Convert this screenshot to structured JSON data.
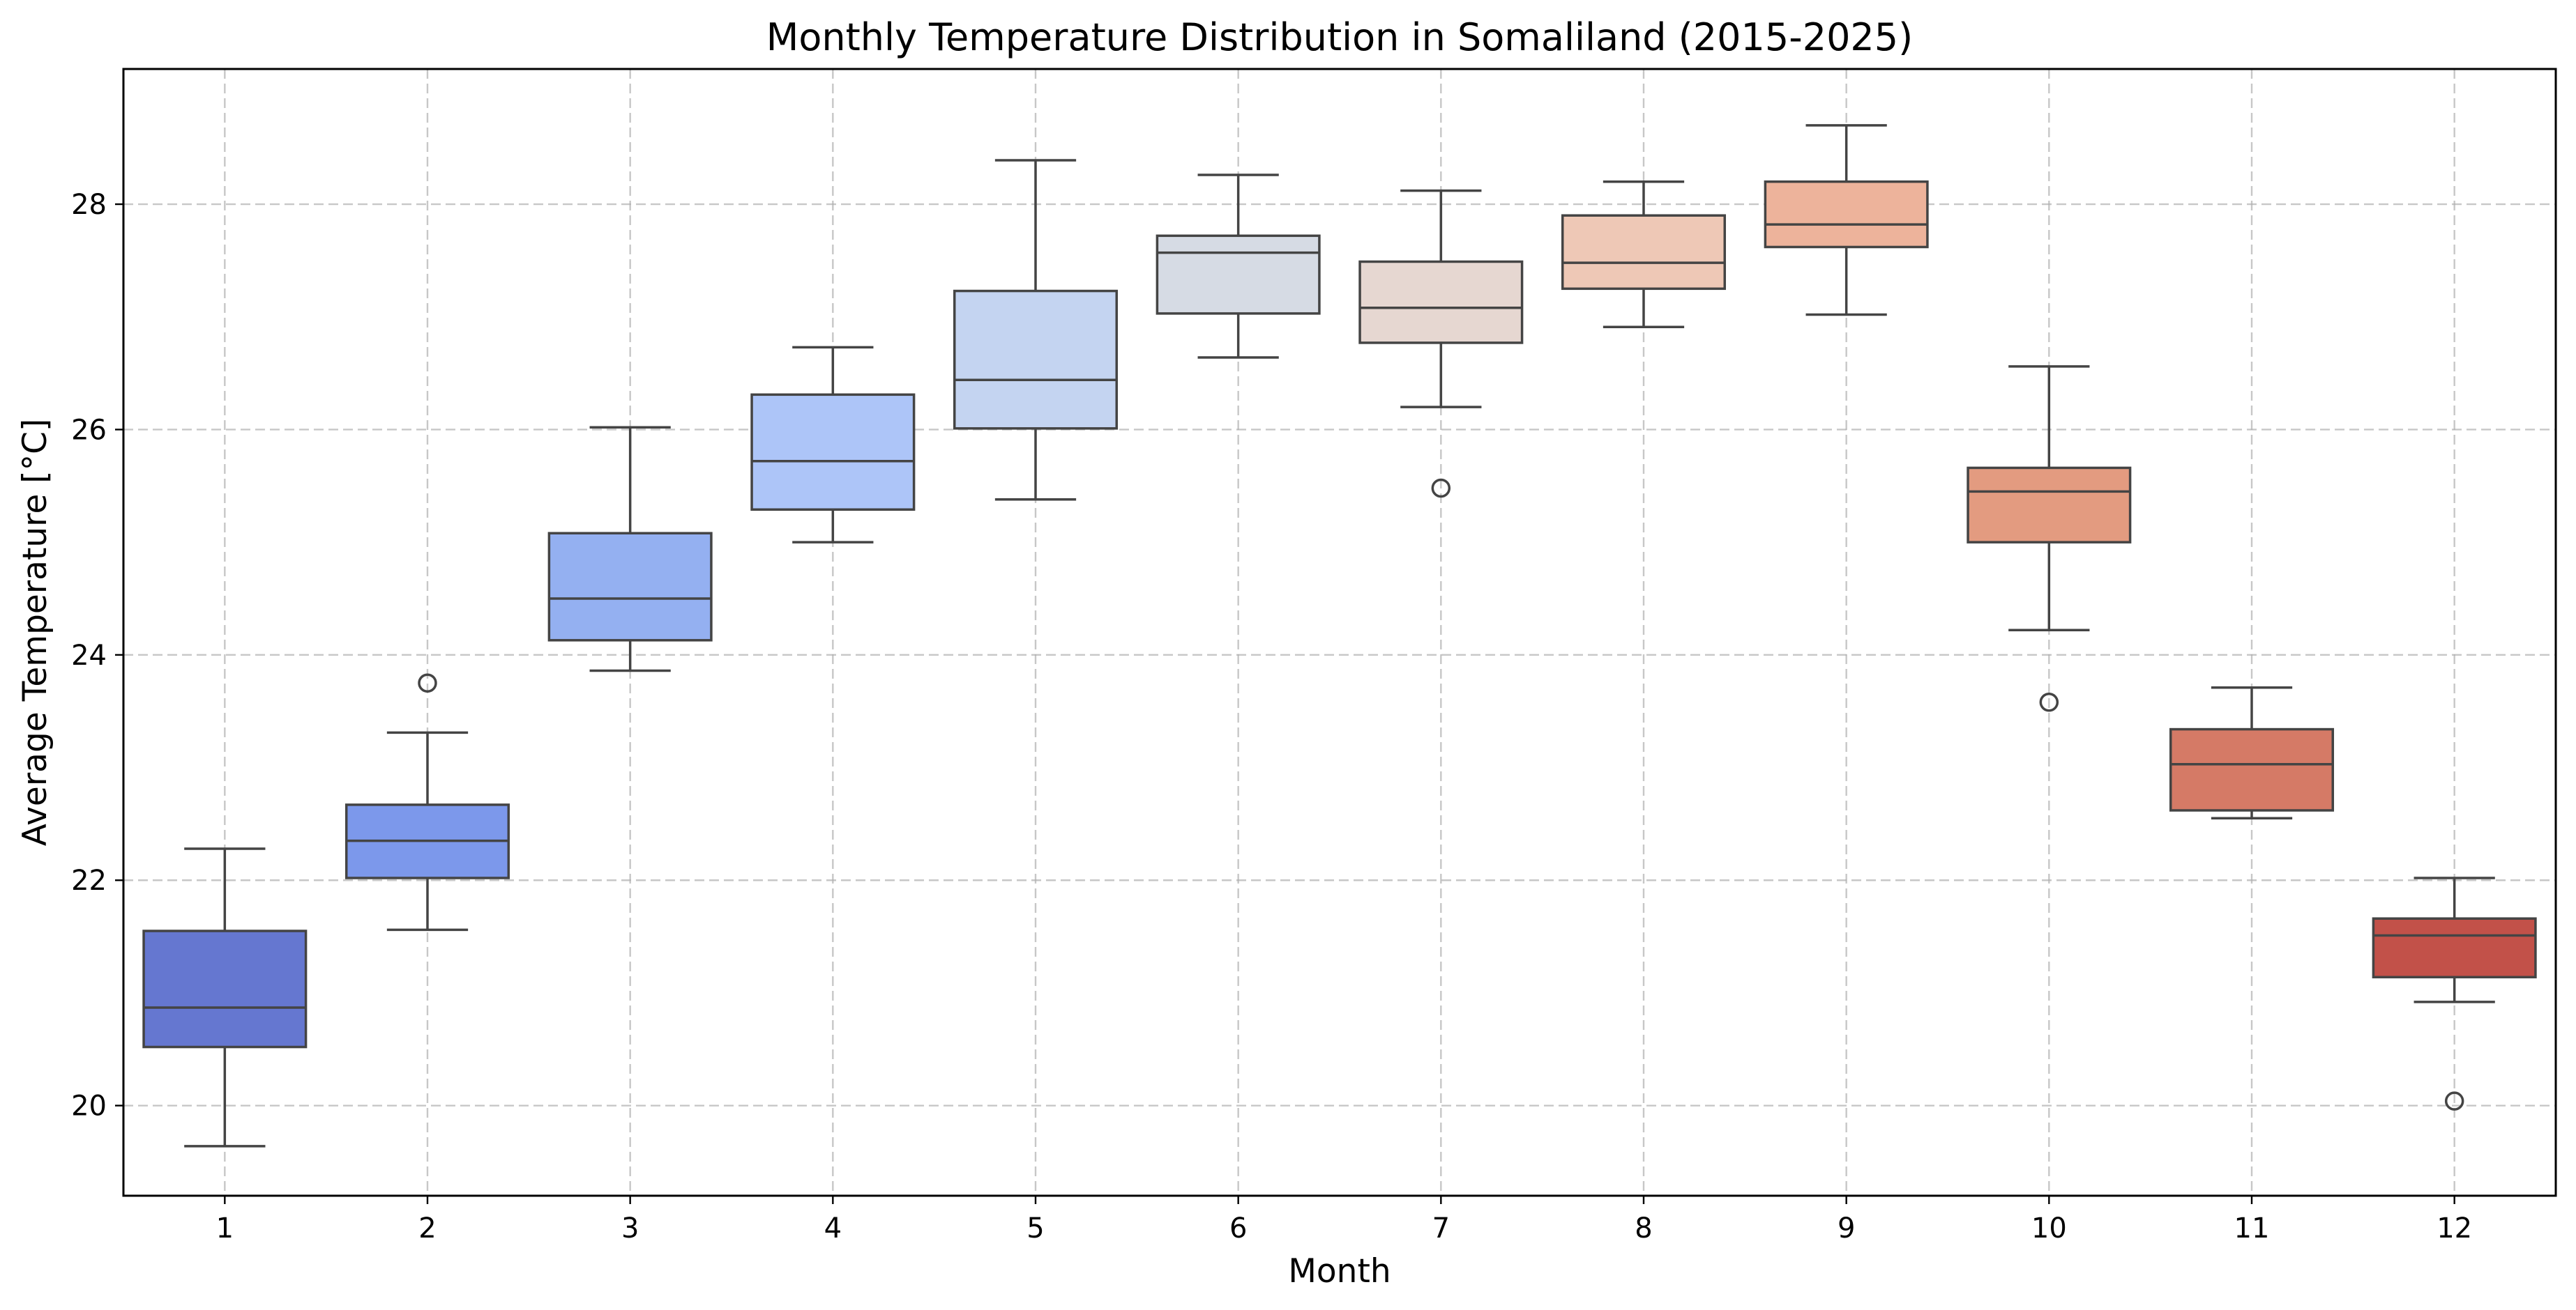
{
  "chart_data": {
    "type": "box",
    "title": "Monthly Temperature Distribution in Somaliland (2015-2025)",
    "xlabel": "Month",
    "ylabel": "Average Temperature [°C]",
    "ylim": [
      19.2,
      29.2
    ],
    "yticks": [
      20,
      22,
      24,
      26,
      28
    ],
    "grid": true,
    "categories": [
      "1",
      "2",
      "3",
      "4",
      "5",
      "6",
      "7",
      "8",
      "9",
      "10",
      "11",
      "12"
    ],
    "colors": [
      "#6577d0",
      "#7c98eb",
      "#94b0f1",
      "#adc5f8",
      "#c4d4f1",
      "#d6dbe4",
      "#e6d7d1",
      "#eec8b6",
      "#edb39b",
      "#e39b80",
      "#d57a66",
      "#c25149"
    ],
    "boxes": [
      {
        "month": "1",
        "whislo": 19.64,
        "q1": 20.52,
        "median": 20.87,
        "q3": 21.55,
        "whishi": 22.28,
        "outliers": []
      },
      {
        "month": "2",
        "whislo": 21.56,
        "q1": 22.02,
        "median": 22.35,
        "q3": 22.67,
        "whishi": 23.31,
        "outliers": [
          23.75
        ]
      },
      {
        "month": "3",
        "whislo": 23.86,
        "q1": 24.13,
        "median": 24.5,
        "q3": 25.08,
        "whishi": 26.02,
        "outliers": []
      },
      {
        "month": "4",
        "whislo": 25.0,
        "q1": 25.29,
        "median": 25.72,
        "q3": 26.31,
        "whishi": 26.73,
        "outliers": []
      },
      {
        "month": "5",
        "whislo": 25.38,
        "q1": 26.01,
        "median": 26.44,
        "q3": 27.23,
        "whishi": 28.39,
        "outliers": []
      },
      {
        "month": "6",
        "whislo": 26.64,
        "q1": 27.03,
        "median": 27.57,
        "q3": 27.72,
        "whishi": 28.26,
        "outliers": []
      },
      {
        "month": "7",
        "whislo": 26.2,
        "q1": 26.77,
        "median": 27.08,
        "q3": 27.49,
        "whishi": 28.12,
        "outliers": [
          25.48
        ]
      },
      {
        "month": "8",
        "whislo": 26.91,
        "q1": 27.25,
        "median": 27.48,
        "q3": 27.9,
        "whishi": 28.2,
        "outliers": []
      },
      {
        "month": "9",
        "whislo": 27.02,
        "q1": 27.62,
        "median": 27.82,
        "q3": 28.2,
        "whishi": 28.7,
        "outliers": []
      },
      {
        "month": "10",
        "whislo": 24.22,
        "q1": 25.0,
        "median": 25.45,
        "q3": 25.66,
        "whishi": 26.56,
        "outliers": [
          23.58
        ]
      },
      {
        "month": "11",
        "whislo": 22.55,
        "q1": 22.62,
        "median": 23.03,
        "q3": 23.34,
        "whishi": 23.71,
        "outliers": []
      },
      {
        "month": "12",
        "whislo": 20.92,
        "q1": 21.14,
        "median": 21.51,
        "q3": 21.66,
        "whishi": 22.02,
        "outliers": [
          20.04
        ]
      }
    ]
  }
}
